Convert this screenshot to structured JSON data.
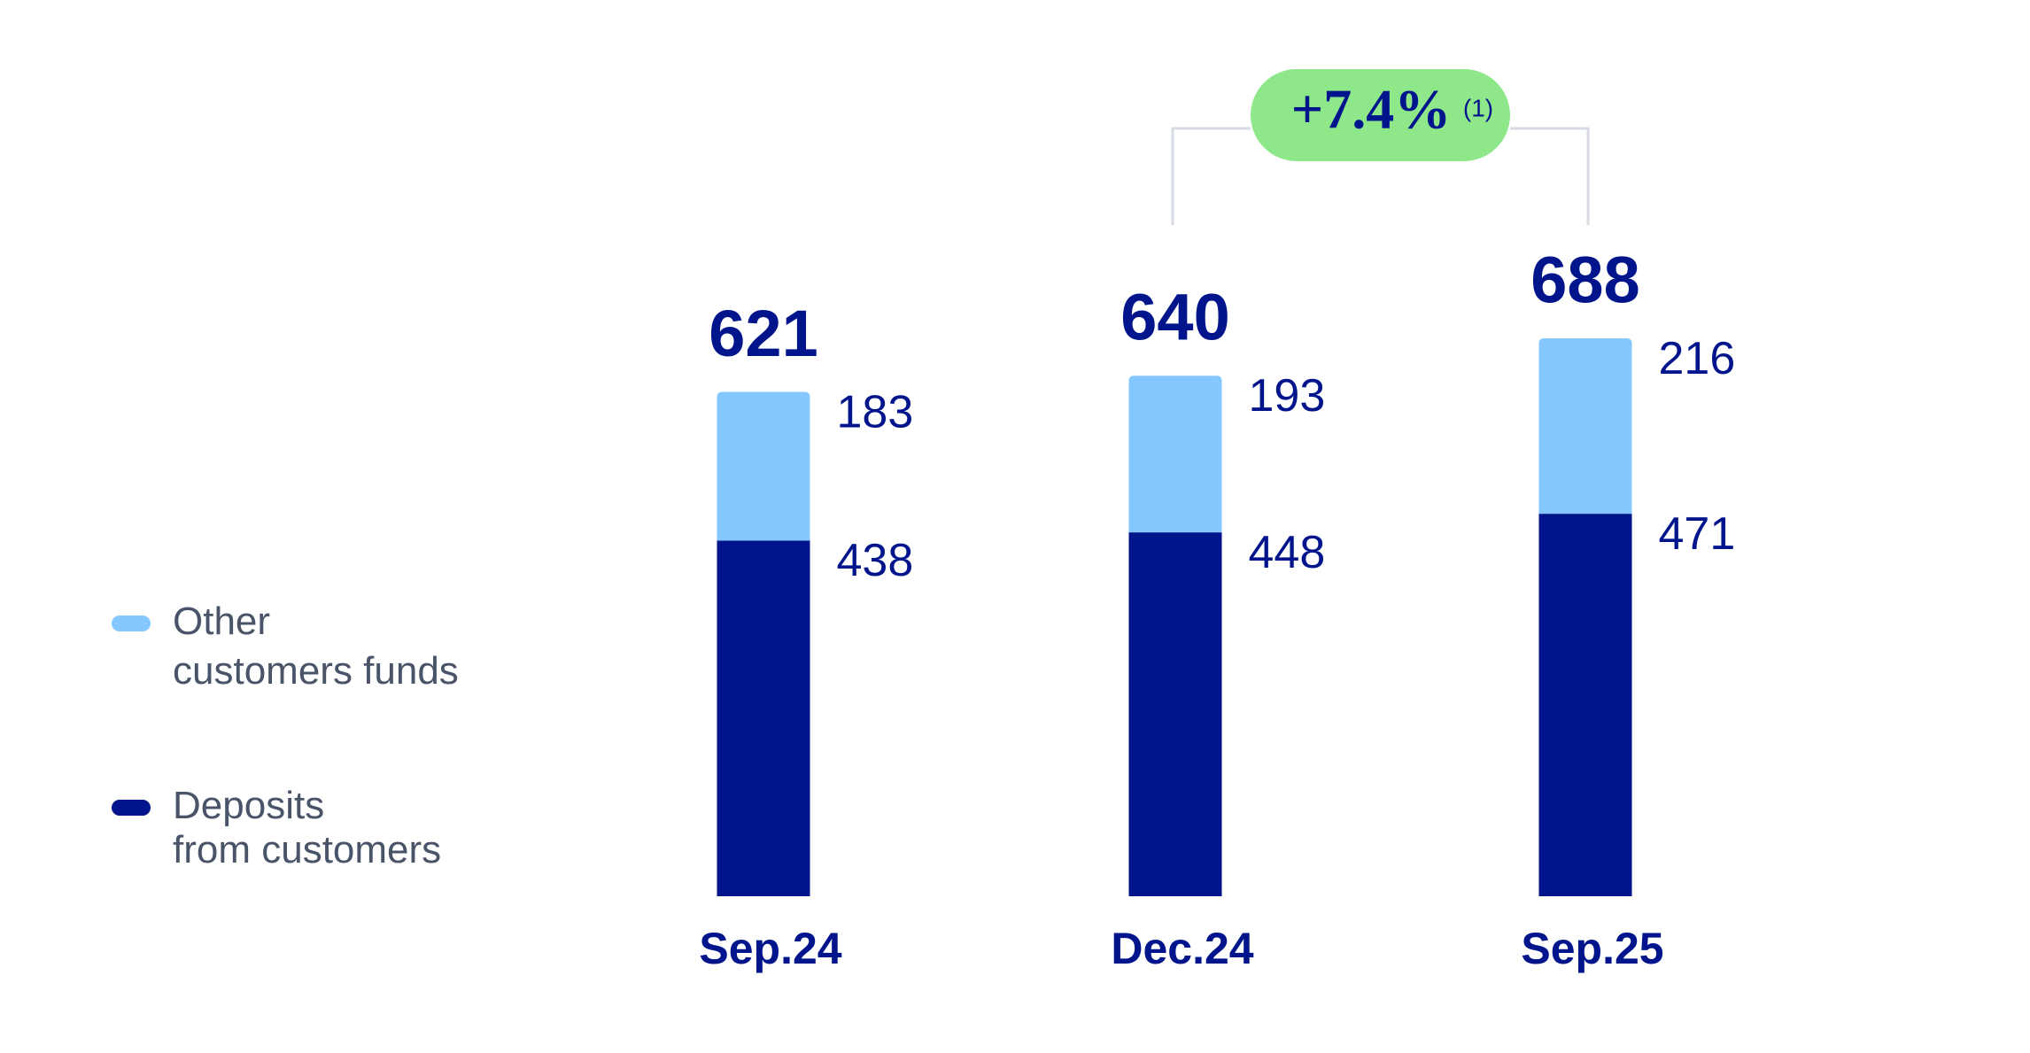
{
  "chart_data": {
    "type": "stacked-bar",
    "categories": [
      "Sep.24",
      "Dec.24",
      "Sep.25"
    ],
    "series": [
      {
        "name": "Deposits from customers",
        "color": "#00148c",
        "values": [
          438,
          448,
          471
        ]
      },
      {
        "name": "Other customers funds",
        "color": "#85c8ff",
        "values": [
          183,
          193,
          216
        ]
      }
    ],
    "totals": [
      621,
      640,
      688
    ],
    "annotation": {
      "text": "+7.4%",
      "note": "(1)",
      "color": "#8ee88a"
    }
  }
}
